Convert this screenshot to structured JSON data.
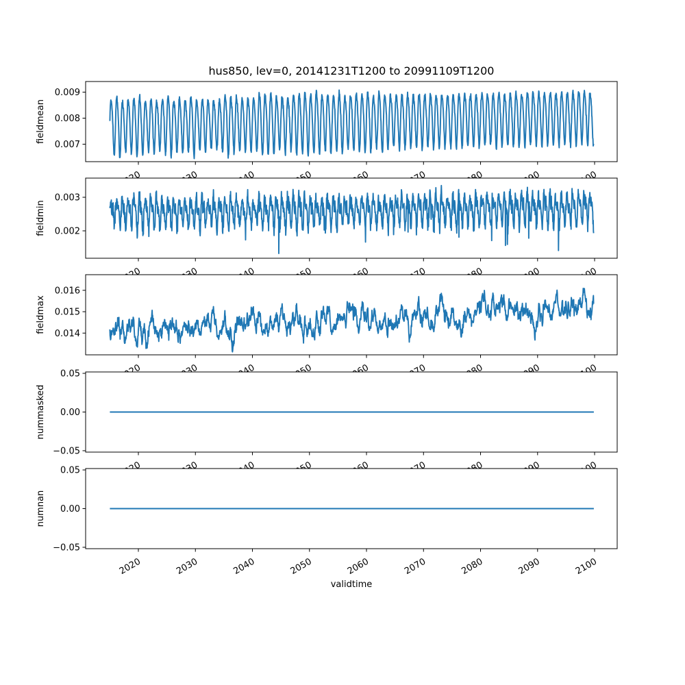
{
  "figure": {
    "title": "hus850, lev=0, 20141231T1200 to 20991109T1200",
    "xlabel": "validtime",
    "background_color": "#ffffff",
    "line_color": "#1f77b4",
    "axes_edge_color": "#000000",
    "text_color": "#000000"
  },
  "chart_data": {
    "type": "line",
    "title": "hus850, lev=0, 20141231T1200 to 20991109T1200",
    "xlabel": "validtime",
    "grid": false,
    "legend": null,
    "line_color": "#1f77b4",
    "x_start": 2015.0,
    "x_end": 2099.86,
    "xlim": [
      2010.75,
      2103.96
    ],
    "x_ticks": [
      2020,
      2030,
      2040,
      2050,
      2060,
      2070,
      2080,
      2090,
      2100
    ],
    "x_tick_labels": [
      "2020",
      "2030",
      "2040",
      "2050",
      "2060",
      "2070",
      "2080",
      "2090",
      "2100"
    ],
    "x_tick_rotation_deg": 30,
    "subplots": [
      {
        "ylabel": "fieldmean",
        "ytick_values": [
          0.007,
          0.008,
          0.009
        ],
        "ytick_labels": [
          "0.007",
          "0.008",
          "0.009"
        ],
        "ylim": [
          0.006329,
          0.009408
        ],
        "series_stats": {
          "approx_min": 0.0065,
          "approx_max": 0.0093,
          "pattern": "annual seasonal oscillation with slight upward trend"
        },
        "gen": {
          "kind": "seasonal",
          "seed": 42,
          "base": 0.00775,
          "trend_per_year": 4.2e-06,
          "amp": 0.00105,
          "amp_jitter": 0.13,
          "h2": 0.15,
          "h2_phase": 0.9,
          "noise_sd": 6e-05,
          "samples_per_year": 24,
          "spike_prob": 0,
          "spike_mag": 0
        }
      },
      {
        "ylabel": "fieldmin",
        "ytick_values": [
          0.002,
          0.003
        ],
        "ytick_labels": [
          "0.002",
          "0.003"
        ],
        "ylim": [
          0.001184,
          0.003571
        ],
        "series_stats": {
          "approx_min": 0.0013,
          "approx_max": 0.0035,
          "pattern": "noisy seasonal oscillation with occasional deep downward spikes"
        },
        "gen": {
          "kind": "seasonal",
          "seed": 7,
          "base": 0.00255,
          "trend_per_year": 1.5e-06,
          "amp": 0.00034,
          "amp_jitter": 0.25,
          "h2": 0.5,
          "h2_phase": 0.6,
          "noise_sd": 0.00012,
          "samples_per_year": 24,
          "spike_prob": 0.004,
          "spike_mag": 0.0008
        }
      },
      {
        "ylabel": "fieldmax",
        "ytick_values": [
          0.014,
          0.015,
          0.016
        ],
        "ytick_labels": [
          "0.014",
          "0.015",
          "0.016"
        ],
        "ylim": [
          0.012984,
          0.01673
        ],
        "series_stats": {
          "approx_min": 0.0132,
          "approx_max": 0.0165,
          "pattern": "autocorrelated noise rising from ~0.014 to ~0.015"
        },
        "gen": {
          "kind": "ar",
          "seed": 99,
          "base": 0.01405,
          "trend_per_year": 1.35e-05,
          "ar": 0.9,
          "innov_sd": 0.00016,
          "season_amp": 8e-05,
          "samples_per_year": 24
        }
      },
      {
        "ylabel": "nummasked",
        "ytick_values": [
          -0.05,
          0.0,
          0.05
        ],
        "ytick_labels": [
          "−0.05",
          "0.00",
          "0.05"
        ],
        "ylim": [
          -0.0518,
          0.0518
        ],
        "series_stats": {
          "approx_min": 0,
          "approx_max": 0,
          "pattern": "constant zero"
        },
        "gen": {
          "kind": "constant",
          "value": 0
        }
      },
      {
        "ylabel": "numnan",
        "ytick_values": [
          -0.05,
          0.0,
          0.05
        ],
        "ytick_labels": [
          "−0.05",
          "0.00",
          "0.05"
        ],
        "ylim": [
          -0.0518,
          0.0518
        ],
        "series_stats": {
          "approx_min": 0,
          "approx_max": 0,
          "pattern": "constant zero"
        },
        "gen": {
          "kind": "constant",
          "value": 0
        }
      }
    ]
  }
}
